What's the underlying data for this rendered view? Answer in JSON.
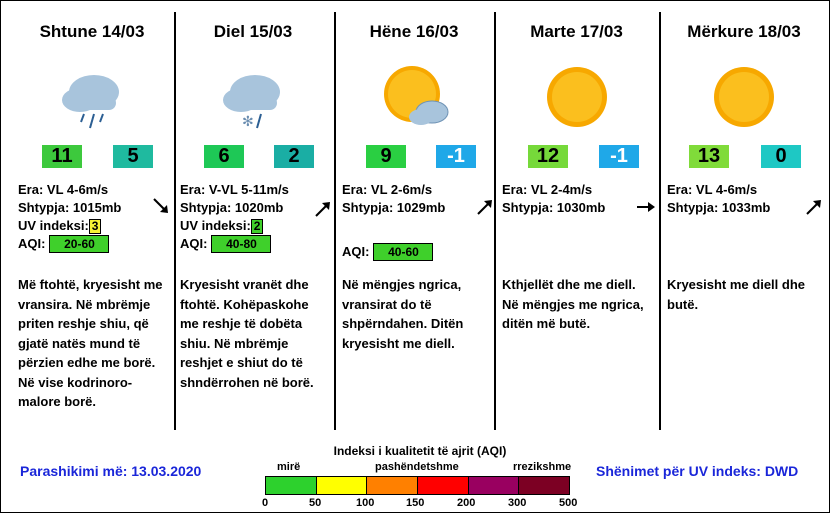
{
  "days": [
    {
      "title": "Shtune 14/03",
      "icon": "rain-cloud-icon",
      "temp_high": "11",
      "temp_high_color": "#3dc93d",
      "temp_low": "5",
      "temp_low_color": "#1fba9f",
      "wind": "Era: VL 4-6m/s",
      "pressure": "Shtypja: 1015mb",
      "uv_label": "UV indeksi:",
      "uv": "3",
      "uv_color": "#f7f436",
      "aqi_label": "AQI:",
      "aqi": "20-60",
      "aqi_color": "#3fd02b",
      "wind_arrow": "arrow-down-right-icon",
      "desc": "Më ftohtë, kryesisht me vransira.  Në mbrëmje priten reshje shiu, që gjatë natës mund të përzien edhe me borë.  Në vise kodrinoro-malore borë."
    },
    {
      "title": "Diel 15/03",
      "icon": "snow-rain-cloud-icon",
      "temp_high": "6",
      "temp_high_color": "#1ec856",
      "temp_low": "2",
      "temp_low_color": "#1aaea4",
      "wind": "Era: V-VL 5-11m/s",
      "pressure": "Shtypja: 1020mb",
      "uv_label": "UV indeksi:",
      "uv": "2",
      "uv_color": "#3fd02b",
      "aqi_label": "AQI:",
      "aqi": "40-80",
      "aqi_color": "#3fd02b",
      "wind_arrow": "arrow-up-right-icon",
      "desc": "Kryesisht vranët dhe ftohtë.  Kohëpaskohe me reshje të dobëta shiu.  Në mbrëmje reshjet e shiut do të shndërrohen në borë."
    },
    {
      "title": "Hëne 16/03",
      "icon": "sun-cloud-icon",
      "temp_high": "9",
      "temp_high_color": "#2acf42",
      "temp_low": "-1",
      "temp_low_color": "#1fa8e8",
      "wind": "Era: VL 2-6m/s",
      "pressure": "Shtypja: 1029mb",
      "uv_label": "",
      "uv": "",
      "uv_color": "",
      "aqi_label": "AQI:",
      "aqi": "40-60",
      "aqi_color": "#3fd02b",
      "wind_arrow": "arrow-up-right-icon",
      "desc": "Në mëngjes ngrica, vransirat do të shpërndahen.  Ditën kryesisht me diell."
    },
    {
      "title": "Marte 17/03",
      "icon": "sun-icon",
      "temp_high": "12",
      "temp_high_color": "#76d93a",
      "temp_low": "-1",
      "temp_low_color": "#1fa8e8",
      "wind": "Era: VL 2-4m/s",
      "pressure": "Shtypja: 1030mb",
      "uv_label": "",
      "uv": "",
      "uv_color": "",
      "aqi_label": "",
      "aqi": "",
      "aqi_color": "",
      "wind_arrow": "arrow-right-icon",
      "desc": "Kthjellët dhe me diell.  Në mëngjes me ngrica, ditën më butë."
    },
    {
      "title": "Mërkure 18/03",
      "icon": "sun-icon",
      "temp_high": "13",
      "temp_high_color": "#80db3a",
      "temp_low": "0",
      "temp_low_color": "#1ec8c4",
      "wind": "Era: VL 4-6m/s",
      "pressure": "Shtypja: 1033mb",
      "uv_label": "",
      "uv": "",
      "uv_color": "",
      "aqi_label": "",
      "aqi": "",
      "aqi_color": "",
      "wind_arrow": "arrow-up-right-icon",
      "desc": "Kryesisht me diell dhe butë."
    }
  ],
  "footer": {
    "forecast_date": "Parashikimi më: 13.03.2020",
    "uv_note": "Shënimet për UV indeks: DWD"
  },
  "aqi_scale": {
    "title": "Indeksi i kualitetit të ajrit (AQI)",
    "labels": [
      "mirë",
      "pashëndetshme",
      "rrezikshme"
    ],
    "ticks": [
      "0",
      "50",
      "100",
      "150",
      "200",
      "300",
      "500"
    ],
    "colors": [
      "#2dd12d",
      "#ffff00",
      "#ff8000",
      "#ff0000",
      "#990060",
      "#7c0023"
    ]
  }
}
